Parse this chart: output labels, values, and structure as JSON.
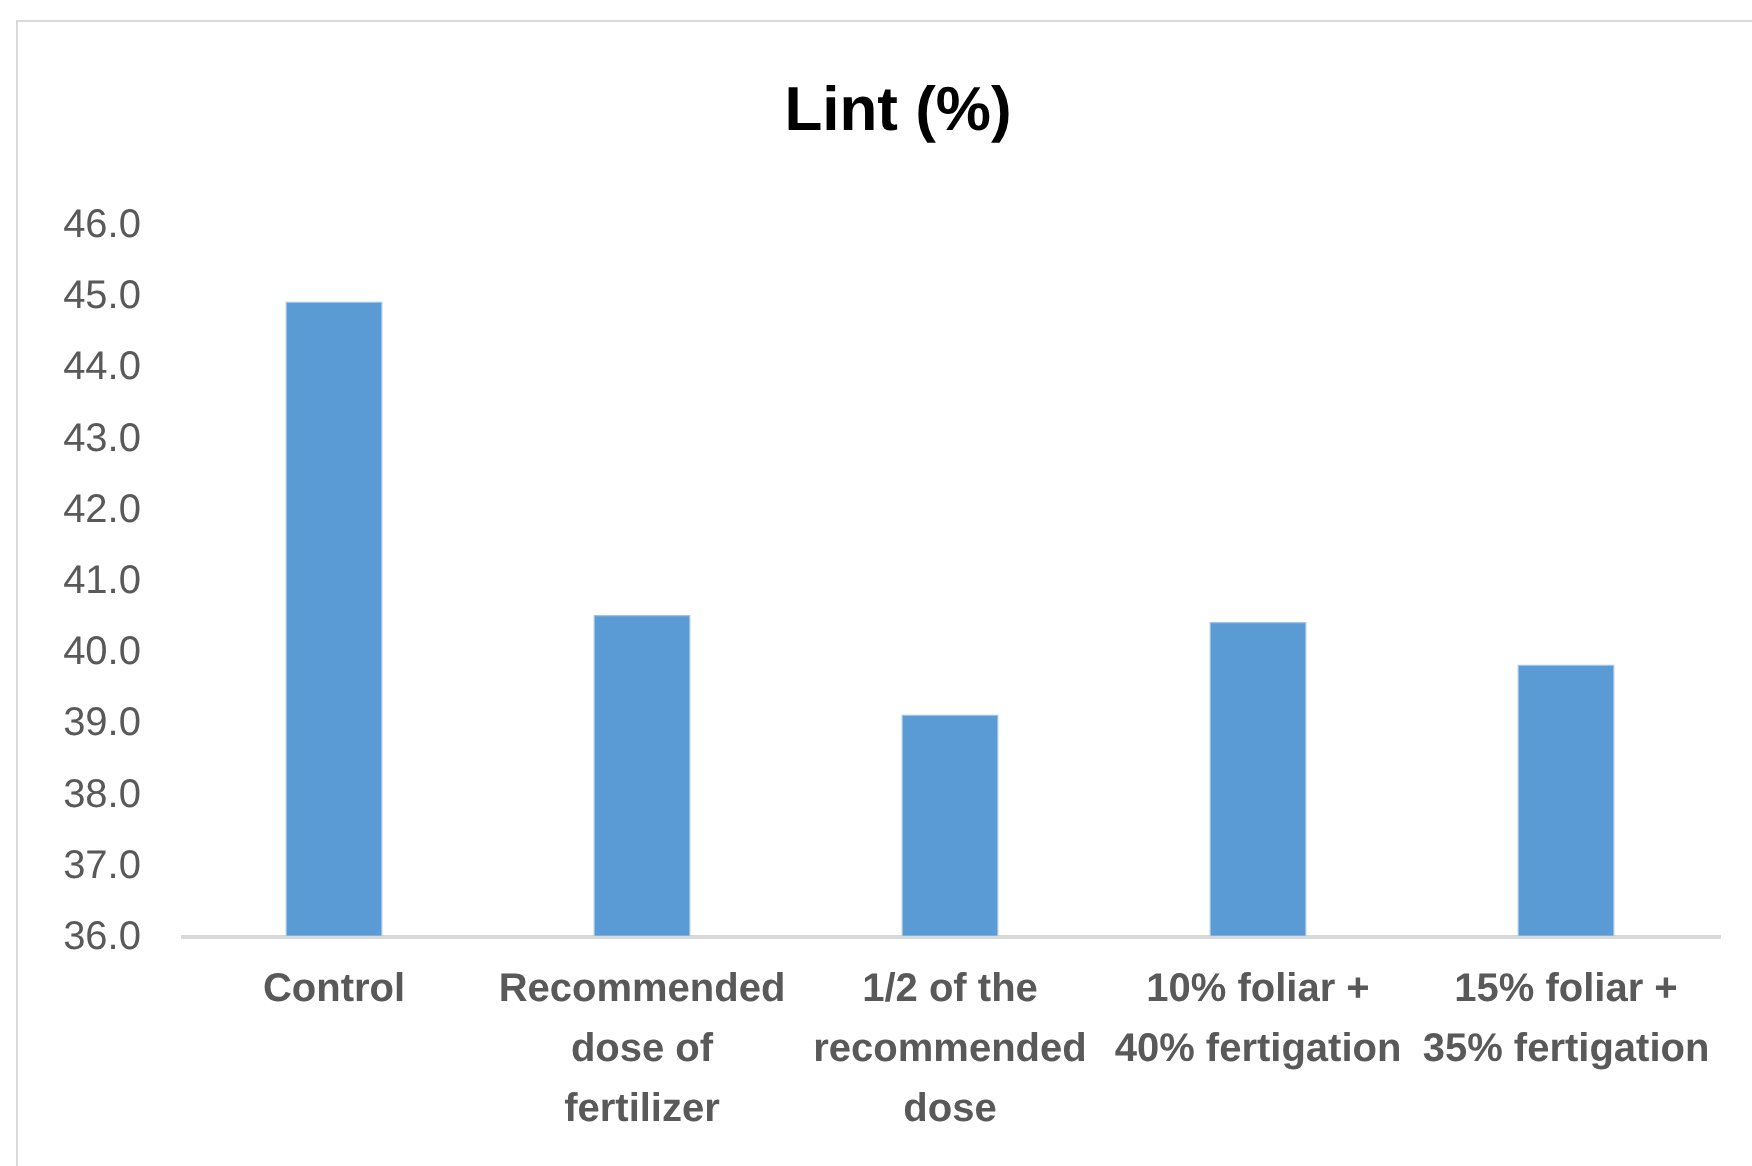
{
  "chart_data": {
    "type": "bar",
    "title": "Lint (%)",
    "categories": [
      "Control",
      "Recommended dose of fertilizer",
      "1/2 of the recommended dose",
      "10% foliar + 40% fertigation",
      "15% foliar + 35% fertigation"
    ],
    "values": [
      44.9,
      40.5,
      39.1,
      40.4,
      39.8
    ],
    "color": "#5b9bd5",
    "ylim": [
      36,
      46
    ],
    "yticks": [
      {
        "value": 36,
        "label": "36.0"
      },
      {
        "value": 37,
        "label": "37.0"
      },
      {
        "value": 38,
        "label": "38.0"
      },
      {
        "value": 39,
        "label": "39.0"
      },
      {
        "value": 40,
        "label": "40.0"
      },
      {
        "value": 41,
        "label": "41.0"
      },
      {
        "value": 42,
        "label": "42.0"
      },
      {
        "value": 43,
        "label": "43.0"
      },
      {
        "value": 44,
        "label": "44.0"
      },
      {
        "value": 45,
        "label": "45.0"
      },
      {
        "value": 46,
        "label": "46.0"
      }
    ],
    "grid": false
  }
}
